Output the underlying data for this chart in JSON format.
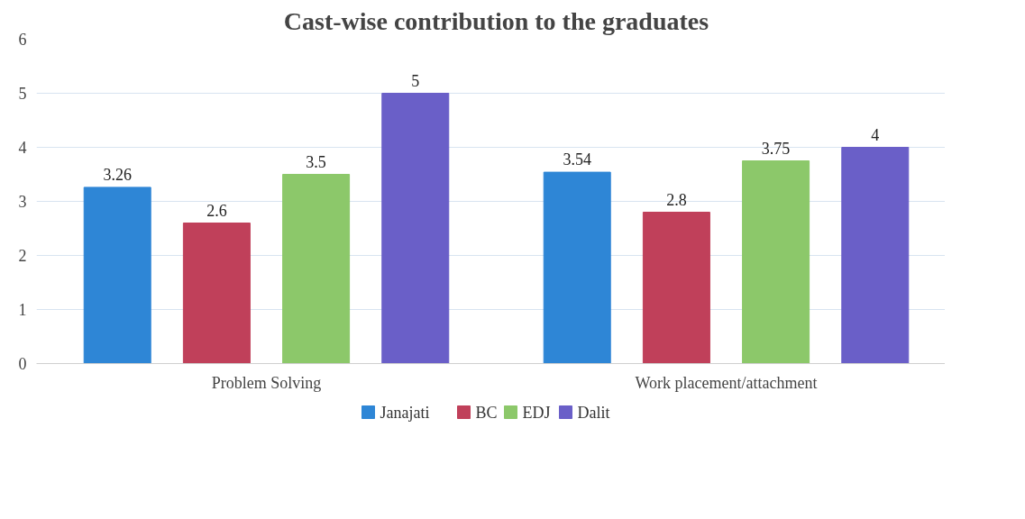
{
  "chart_data": {
    "type": "bar",
    "title": "Cast-wise contribution to the graduates",
    "categories": [
      "Problem Solving",
      "Work placement/attachment"
    ],
    "series": [
      {
        "name": "Janajati",
        "color": "#2e86d6",
        "values": [
          3.26,
          3.54
        ]
      },
      {
        "name": "BC",
        "color": "#c0405a",
        "values": [
          2.6,
          2.8
        ]
      },
      {
        "name": "EDJ",
        "color": "#8cc86a",
        "values": [
          3.5,
          3.75
        ]
      },
      {
        "name": "Dalit",
        "color": "#6a5fc8",
        "values": [
          5,
          4
        ]
      }
    ],
    "ylim": [
      0,
      6
    ],
    "yticks": [
      0,
      1,
      2,
      3,
      4,
      5,
      6
    ],
    "grid": "y",
    "legend": "bottom",
    "data_labels": true
  }
}
